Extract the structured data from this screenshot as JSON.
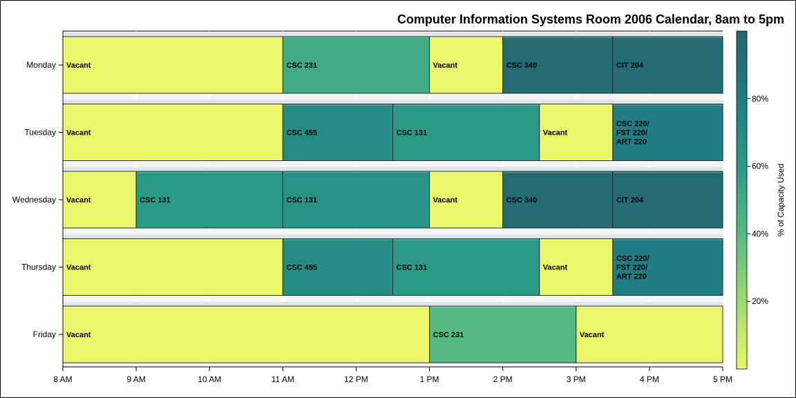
{
  "chart_data": {
    "type": "bar",
    "orientation": "horizontal-gantt",
    "title": "Computer Information Systems Room 2006 Calendar, 8am to 5pm",
    "x_ticks": [
      {
        "hour": 8,
        "label": "8 AM"
      },
      {
        "hour": 9,
        "label": "9 AM"
      },
      {
        "hour": 10,
        "label": "10 AM"
      },
      {
        "hour": 11,
        "label": "11 AM"
      },
      {
        "hour": 12,
        "label": "12 PM"
      },
      {
        "hour": 13,
        "label": "1 PM"
      },
      {
        "hour": 14,
        "label": "2 PM"
      },
      {
        "hour": 15,
        "label": "3 PM"
      },
      {
        "hour": 16,
        "label": "4 PM"
      },
      {
        "hour": 17,
        "label": "5 PM"
      }
    ],
    "xlim": [
      8,
      17
    ],
    "days": [
      "Monday",
      "Tuesday",
      "Wednesday",
      "Thursday",
      "Friday"
    ],
    "grid": true,
    "colorbar": {
      "label": "% of Capacity Used",
      "range": [
        0,
        100
      ],
      "ticks": [
        {
          "value": 20,
          "label": "20%"
        },
        {
          "value": 40,
          "label": "40%"
        },
        {
          "value": 60,
          "label": "60%"
        },
        {
          "value": 80,
          "label": "80%"
        }
      ],
      "colors": [
        "#eaf76b",
        "#9bdc73",
        "#56ba83",
        "#2a9a87",
        "#1f7d83",
        "#25656e"
      ]
    },
    "bars": [
      {
        "day": "Monday",
        "start": 8,
        "end": 11,
        "label": "Vacant",
        "capacity": 0
      },
      {
        "day": "Monday",
        "start": 11,
        "end": 13,
        "label": "CSC 231",
        "capacity": 50
      },
      {
        "day": "Monday",
        "start": 13,
        "end": 14,
        "label": "Vacant",
        "capacity": 0
      },
      {
        "day": "Monday",
        "start": 14,
        "end": 15.5,
        "label": "CSC 340",
        "capacity": 95
      },
      {
        "day": "Monday",
        "start": 15.5,
        "end": 17,
        "label": "CIT 204",
        "capacity": 95
      },
      {
        "day": "Tuesday",
        "start": 8,
        "end": 11,
        "label": "Vacant",
        "capacity": 0
      },
      {
        "day": "Tuesday",
        "start": 11,
        "end": 12.5,
        "label": "CSC 455",
        "capacity": 70
      },
      {
        "day": "Tuesday",
        "start": 12.5,
        "end": 14.5,
        "label": "CSC 131",
        "capacity": 60
      },
      {
        "day": "Tuesday",
        "start": 14.5,
        "end": 15.5,
        "label": "Vacant",
        "capacity": 0
      },
      {
        "day": "Tuesday",
        "start": 15.5,
        "end": 17,
        "label": "CSC 220/\nFST 220/\nART 220",
        "capacity": 80
      },
      {
        "day": "Wednesday",
        "start": 8,
        "end": 9,
        "label": "Vacant",
        "capacity": 0
      },
      {
        "day": "Wednesday",
        "start": 9,
        "end": 11,
        "label": "CSC 131",
        "capacity": 60
      },
      {
        "day": "Wednesday",
        "start": 11,
        "end": 13,
        "label": "CSC 131",
        "capacity": 65
      },
      {
        "day": "Wednesday",
        "start": 13,
        "end": 14,
        "label": "Vacant",
        "capacity": 0
      },
      {
        "day": "Wednesday",
        "start": 14,
        "end": 15.5,
        "label": "CSC 340",
        "capacity": 95
      },
      {
        "day": "Wednesday",
        "start": 15.5,
        "end": 17,
        "label": "CIT 204",
        "capacity": 95
      },
      {
        "day": "Thursday",
        "start": 8,
        "end": 11,
        "label": "Vacant",
        "capacity": 0
      },
      {
        "day": "Thursday",
        "start": 11,
        "end": 12.5,
        "label": "CSC 455",
        "capacity": 70
      },
      {
        "day": "Thursday",
        "start": 12.5,
        "end": 14.5,
        "label": "CSC 131",
        "capacity": 60
      },
      {
        "day": "Thursday",
        "start": 14.5,
        "end": 15.5,
        "label": "Vacant",
        "capacity": 0
      },
      {
        "day": "Thursday",
        "start": 15.5,
        "end": 17,
        "label": "CSC 220/\nFST 220/\nART 220",
        "capacity": 80
      },
      {
        "day": "Friday",
        "start": 8,
        "end": 13,
        "label": "Vacant",
        "capacity": 0
      },
      {
        "day": "Friday",
        "start": 13,
        "end": 15,
        "label": "CSC 231",
        "capacity": 40
      },
      {
        "day": "Friday",
        "start": 15,
        "end": 17,
        "label": "Vacant",
        "capacity": 0
      }
    ]
  }
}
